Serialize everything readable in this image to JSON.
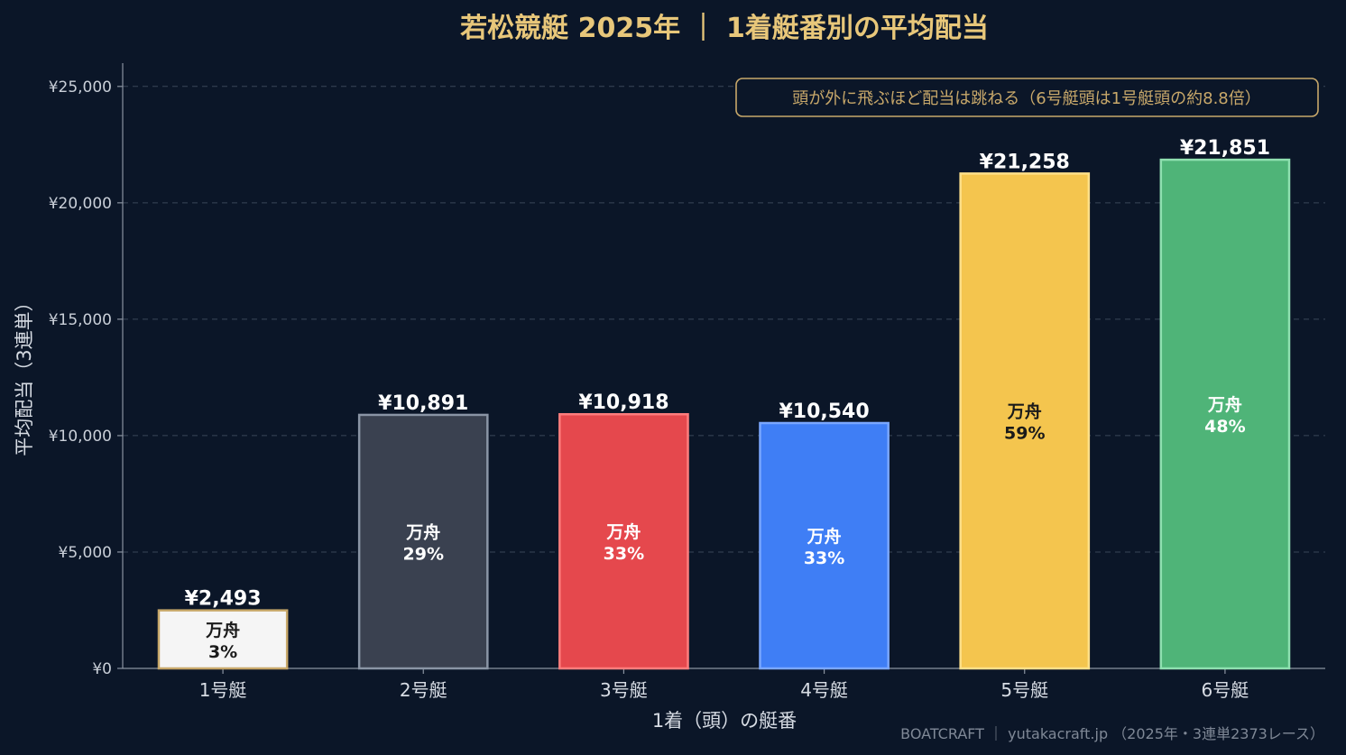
{
  "chart_data": {
    "type": "bar",
    "title": "若松競艇 2025年 ｜ 1着艇番別の平均配当",
    "xlabel": "1着（頭）の艇番",
    "ylabel": "平均配当（3連単）",
    "ylim": [
      0,
      26000
    ],
    "yticks": [
      0,
      5000,
      10000,
      15000,
      20000,
      25000
    ],
    "ytick_labels": [
      "¥0",
      "¥5,000",
      "¥10,000",
      "¥15,000",
      "¥20,000",
      "¥25,000"
    ],
    "grid": true,
    "categories": [
      "1号艇",
      "2号艇",
      "3号艇",
      "4号艇",
      "5号艇",
      "6号艇"
    ],
    "values": [
      2493,
      10891,
      10918,
      10540,
      21258,
      21851
    ],
    "value_labels": [
      "¥2,493",
      "¥10,891",
      "¥10,918",
      "¥10,540",
      "¥21,258",
      "¥21,851"
    ],
    "inner_title": "万舟",
    "inner_labels": [
      "3%",
      "29%",
      "33%",
      "33%",
      "59%",
      "48%"
    ],
    "bar_colors": [
      "#f5f5f5",
      "#3a4150",
      "#e5484d",
      "#3f7ef5",
      "#f4c54e",
      "#4fb478"
    ],
    "bar_edge_colors": [
      "#c8a86a",
      "#8a95a5",
      "#ff7d7d",
      "#7aa7ff",
      "#ffe08a",
      "#8fe0b0"
    ],
    "inner_text_colors": [
      "#1a1a1a",
      "#ffffff",
      "#ffffff",
      "#ffffff",
      "#1a1a1a",
      "#ffffff"
    ],
    "annotation": "頭が外に飛ぶほど配当は跳ねる（6号艇頭は1号艇頭の約8.8倍）"
  },
  "footer": "BOATCRAFT ｜ yutakacraft.jp （2025年・3連単2373レース）"
}
